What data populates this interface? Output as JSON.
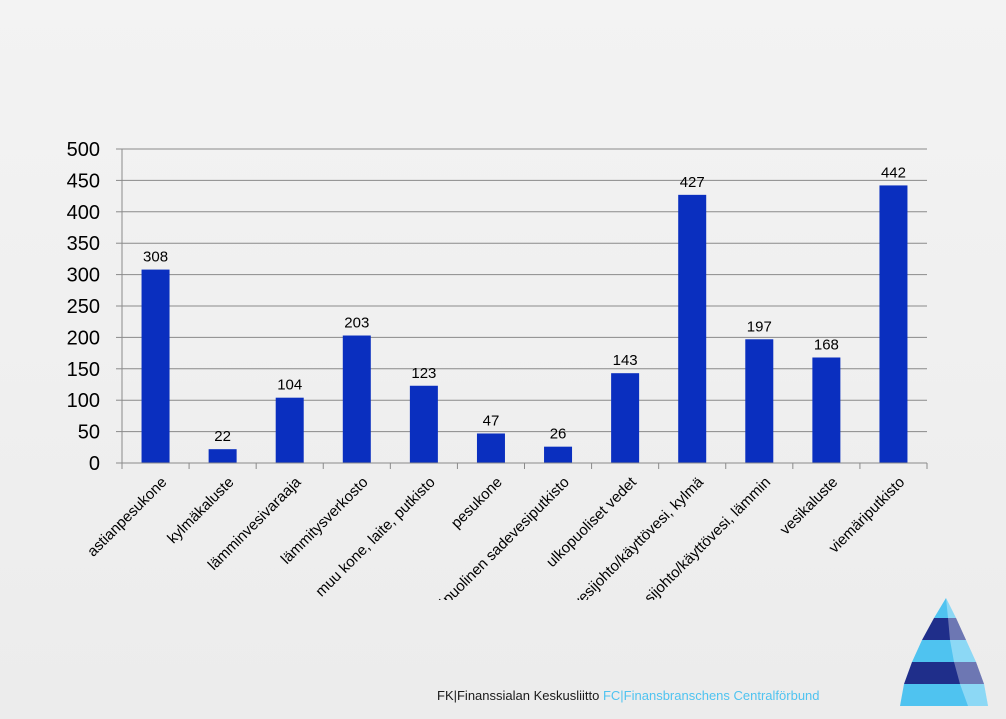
{
  "chart_data": {
    "type": "bar",
    "title": "",
    "xlabel": "",
    "ylabel": "",
    "ylim": [
      0,
      500
    ],
    "yticks": [
      0,
      50,
      100,
      150,
      200,
      250,
      300,
      350,
      400,
      450,
      500
    ],
    "categories": [
      "astianpesukone",
      "kylmäkaluste",
      "lämminvesivaraaja",
      "lämmitysverkosto",
      "muu kone, laite, putkisto",
      "pesukone",
      "sisäpuolinen sadevesiputkisto",
      "ulkopuoliset vedet",
      "vesijohto/käyttövesi, kylmä",
      "vesijohto/käyttövesi, lämmin",
      "vesikaluste",
      "viemäriputkisto"
    ],
    "values": [
      308,
      22,
      104,
      203,
      123,
      47,
      26,
      143,
      427,
      197,
      168,
      442
    ],
    "bar_color": "#0a2fbf",
    "grid": true
  },
  "footer": {
    "fk_text": "FK|Finanssialan Keskusliitto",
    "fc_text": "FC|Finansbranschens Centralförbund"
  },
  "logo_icon": "fk-pyramid-logo-icon"
}
